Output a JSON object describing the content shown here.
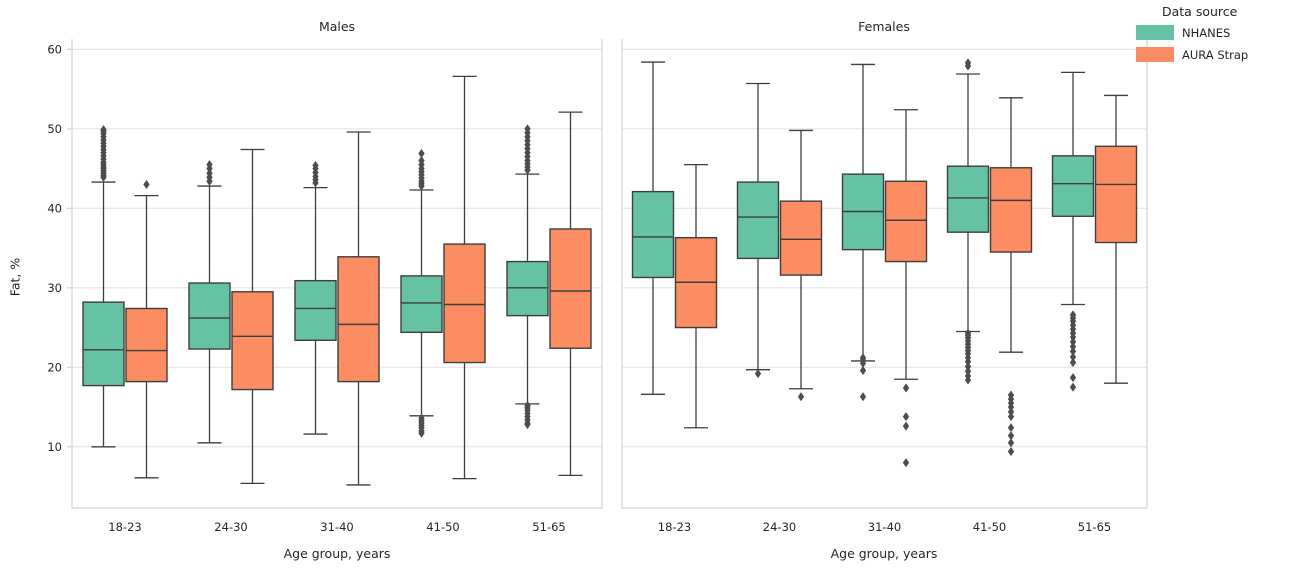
{
  "legend": {
    "title": "Data source",
    "items": [
      {
        "label": "NHANES",
        "color": "#66c2a5"
      },
      {
        "label": "AURA Strap",
        "color": "#fc8d62"
      }
    ]
  },
  "style": {
    "nhanes_color": "#66c2a5",
    "aura_color": "#fc8d62",
    "line_color": "#3e3e3e",
    "outlier_color": "#4d4d4d",
    "grid_color": "#e4e4e8",
    "spine_color": "#d2d2d6",
    "text_color": "#262626",
    "background": "#ffffff"
  },
  "chart_data": {
    "type": "boxplot",
    "title": "",
    "xlabel": "Age group, years",
    "ylabel": "Fat, %",
    "y_ticks": [
      10,
      20,
      30,
      40,
      50,
      60
    ],
    "ylim": [
      2.3,
      61.3
    ],
    "grid": "horizontal",
    "legend_position": "upper right outside",
    "categories": [
      "18-23",
      "24-30",
      "31-40",
      "41-50",
      "51-65"
    ],
    "series_names": [
      "NHANES",
      "AURA Strap"
    ],
    "panels": [
      {
        "title": "Males",
        "series": [
          {
            "name": "NHANES",
            "boxes": [
              {
                "whislo": 10.0,
                "q1": 17.7,
                "med": 22.2,
                "q3": 28.2,
                "whishi": 43.3,
                "outliers": [
                  43.9,
                  44.1,
                  44.4,
                  44.7,
                  45.0,
                  45.2,
                  45.5,
                  45.8,
                  46.2,
                  46.6,
                  47.0,
                  47.4,
                  47.8,
                  48.2,
                  48.6,
                  49.0,
                  49.4,
                  49.7,
                  49.9
                ]
              },
              {
                "whislo": 10.5,
                "q1": 22.3,
                "med": 26.2,
                "q3": 30.6,
                "whishi": 42.8,
                "outliers": [
                  43.4,
                  43.9,
                  44.4,
                  45.0,
                  45.5
                ]
              },
              {
                "whislo": 11.6,
                "q1": 23.4,
                "med": 27.4,
                "q3": 30.9,
                "whishi": 42.6,
                "outliers": [
                  43.2,
                  43.6,
                  44.0,
                  44.5,
                  45.0,
                  45.4
                ]
              },
              {
                "whislo": 13.9,
                "q1": 24.4,
                "med": 28.1,
                "q3": 31.5,
                "whishi": 42.3,
                "outliers": [
                  42.8,
                  43.1,
                  43.4,
                  43.8,
                  44.2,
                  44.6,
                  45.0,
                  45.5,
                  46.0,
                  46.9,
                  13.6,
                  13.3,
                  13.0,
                  12.7,
                  12.4,
                  12.0,
                  11.7
                ]
              },
              {
                "whislo": 15.4,
                "q1": 26.5,
                "med": 30.0,
                "q3": 33.3,
                "whishi": 44.3,
                "outliers": [
                  44.8,
                  45.2,
                  45.6,
                  46.0,
                  46.5,
                  47.0,
                  47.5,
                  48.0,
                  48.5,
                  49.0,
                  49.5,
                  50.0,
                  15.2,
                  14.9,
                  14.6,
                  14.2,
                  13.8,
                  13.4,
                  13.0,
                  12.8
                ]
              }
            ]
          },
          {
            "name": "AURA Strap",
            "boxes": [
              {
                "whislo": 6.1,
                "q1": 18.2,
                "med": 22.1,
                "q3": 27.4,
                "whishi": 41.6,
                "outliers": [
                  43.0
                ]
              },
              {
                "whislo": 5.4,
                "q1": 17.2,
                "med": 23.9,
                "q3": 29.5,
                "whishi": 47.4,
                "outliers": []
              },
              {
                "whislo": 5.2,
                "q1": 18.2,
                "med": 25.4,
                "q3": 33.9,
                "whishi": 49.6,
                "outliers": []
              },
              {
                "whislo": 6.0,
                "q1": 20.6,
                "med": 27.9,
                "q3": 35.5,
                "whishi": 56.6,
                "outliers": []
              },
              {
                "whislo": 6.4,
                "q1": 22.4,
                "med": 29.6,
                "q3": 37.4,
                "whishi": 52.1,
                "outliers": []
              }
            ]
          }
        ]
      },
      {
        "title": "Females",
        "series": [
          {
            "name": "NHANES",
            "boxes": [
              {
                "whislo": 16.6,
                "q1": 31.3,
                "med": 36.4,
                "q3": 42.1,
                "whishi": 58.4,
                "outliers": []
              },
              {
                "whislo": 19.7,
                "q1": 33.7,
                "med": 38.9,
                "q3": 43.3,
                "whishi": 55.7,
                "outliers": [
                  19.2
                ]
              },
              {
                "whislo": 20.8,
                "q1": 34.8,
                "med": 39.6,
                "q3": 44.3,
                "whishi": 58.1,
                "outliers": [
                  21.2,
                  20.9,
                  20.5,
                  19.6,
                  16.3
                ]
              },
              {
                "whislo": 24.5,
                "q1": 37.0,
                "med": 41.3,
                "q3": 45.3,
                "whishi": 56.9,
                "outliers": [
                  57.9,
                  58.3,
                  24.3,
                  24.0,
                  23.7,
                  23.3,
                  22.9,
                  22.5,
                  22.1,
                  21.7,
                  21.2,
                  20.7,
                  20.1,
                  19.5,
                  18.9,
                  18.4
                ]
              },
              {
                "whislo": 27.9,
                "q1": 39.0,
                "med": 43.1,
                "q3": 46.6,
                "whishi": 57.1,
                "outliers": [
                  26.6,
                  26.2,
                  25.8,
                  25.3,
                  24.8,
                  24.3,
                  23.8,
                  23.2,
                  22.6,
                  22.0,
                  21.3,
                  20.6,
                  18.7,
                  17.5
                ]
              }
            ]
          },
          {
            "name": "AURA Strap",
            "boxes": [
              {
                "whislo": 12.4,
                "q1": 25.0,
                "med": 30.7,
                "q3": 36.3,
                "whishi": 45.5,
                "outliers": []
              },
              {
                "whislo": 17.3,
                "q1": 31.6,
                "med": 36.1,
                "q3": 40.9,
                "whishi": 49.8,
                "outliers": [
                  16.3
                ]
              },
              {
                "whislo": 18.5,
                "q1": 33.3,
                "med": 38.5,
                "q3": 43.4,
                "whishi": 52.4,
                "outliers": [
                  17.4,
                  13.8,
                  12.6,
                  8.0
                ]
              },
              {
                "whislo": 21.9,
                "q1": 34.5,
                "med": 41.0,
                "q3": 45.1,
                "whishi": 53.9,
                "outliers": [
                  16.5,
                  16.0,
                  15.5,
                  15.0,
                  14.4,
                  13.8,
                  12.4,
                  11.4,
                  10.5,
                  9.4
                ]
              },
              {
                "whislo": 18.0,
                "q1": 35.7,
                "med": 43.0,
                "q3": 47.8,
                "whishi": 54.2,
                "outliers": []
              }
            ]
          }
        ]
      }
    ]
  }
}
